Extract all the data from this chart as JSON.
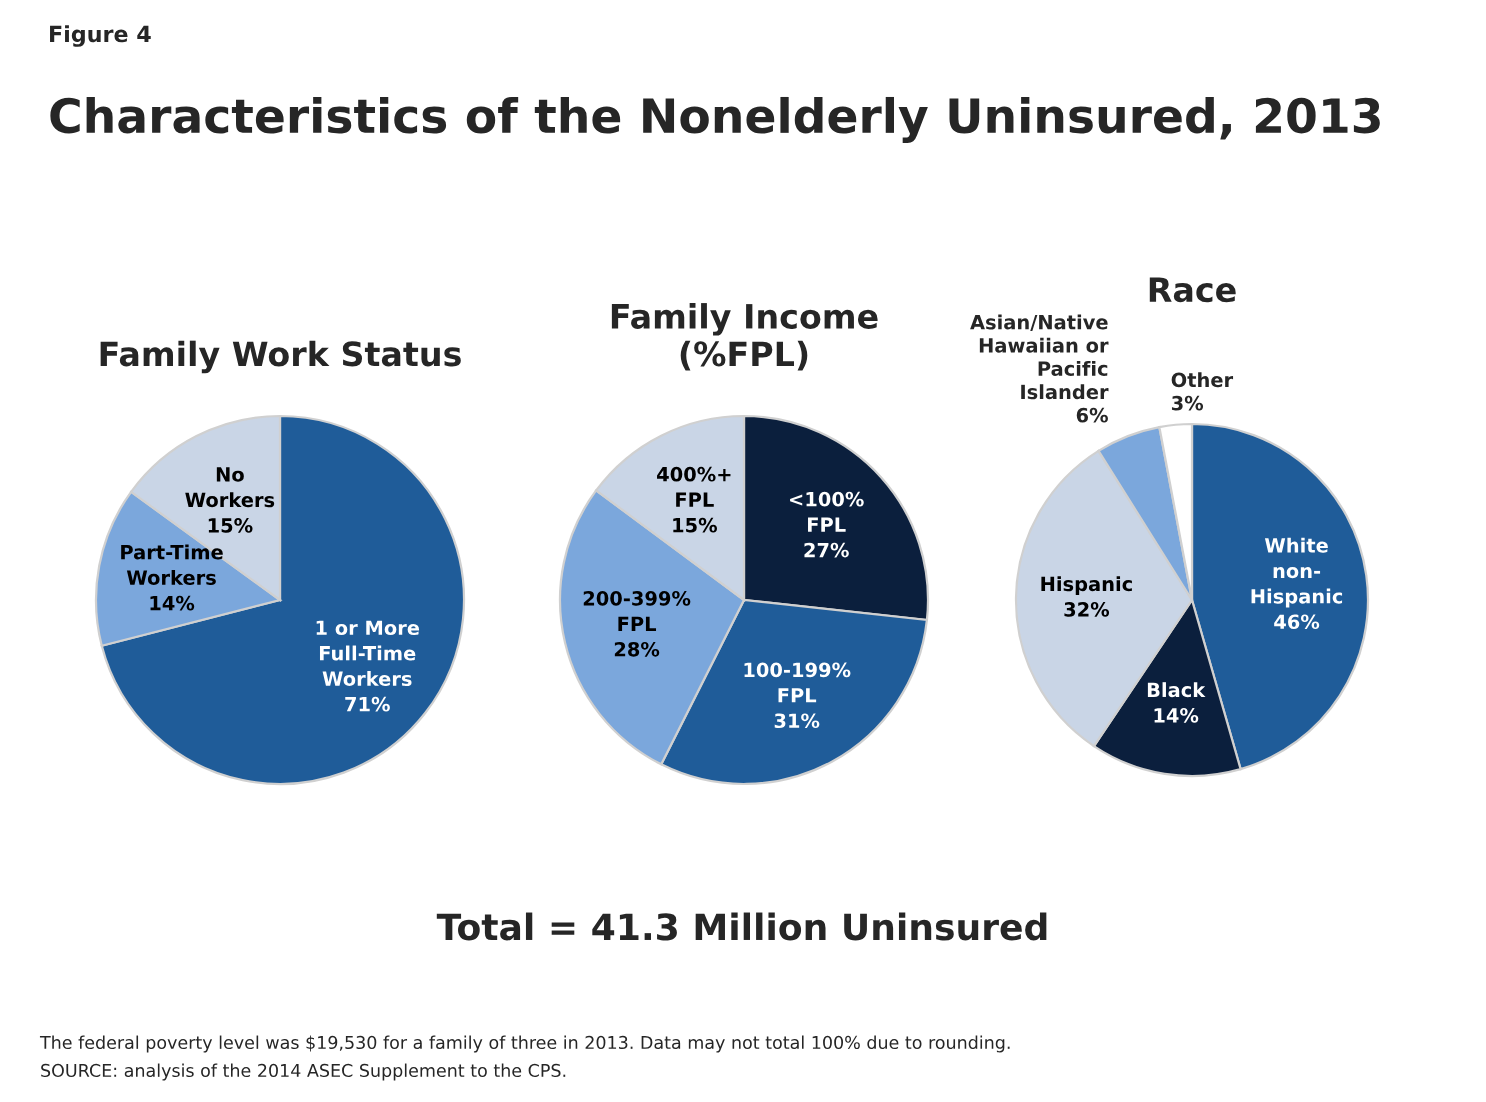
{
  "chart_data": [
    {
      "type": "other",
      "subtitle": "Figure 4",
      "title": "Characteristics of the Nonelderly Uninsured, 2013",
      "annotations": [
        "Total = 41.3 Million Uninsured",
        "The federal poverty level was $19,530 for a family of three in 2013. Data may not total 100% due to rounding.",
        "SOURCE: analysis of the 2014 ASEC Supplement to the CPS."
      ]
    },
    {
      "type": "pie",
      "title": "Family Work Status",
      "categories": [
        "1 or More\nFull-Time\nWorkers",
        "Part-Time\nWorkers",
        "No\nWorkers"
      ],
      "values": [
        71,
        14,
        15
      ],
      "value_labels": [
        "71%",
        "14%",
        "15%"
      ],
      "colors": [
        "#1f5c99",
        "#7ba7dc",
        "#c9d5e6"
      ]
    },
    {
      "type": "pie",
      "title": "Family Income\n(%FPL)",
      "categories": [
        "<100%\nFPL",
        "100-199%\nFPL",
        "200-399%\nFPL",
        "400%+\nFPL"
      ],
      "values": [
        27,
        31,
        28,
        15
      ],
      "value_labels": [
        "27%",
        "31%",
        "28%",
        "15%"
      ],
      "colors": [
        "#0b1f3d",
        "#1f5c99",
        "#7ba7dc",
        "#c9d5e6"
      ]
    },
    {
      "type": "pie",
      "title": "Race",
      "categories": [
        "White\nnon-\nHispanic",
        "Black",
        "Hispanic",
        "Asian/Native\nHawaiian or\nPacific\nIslander",
        "Other"
      ],
      "values": [
        46,
        14,
        32,
        6,
        3
      ],
      "value_labels": [
        "46%",
        "14%",
        "32%",
        "6%",
        "3%"
      ],
      "colors": [
        "#1f5c99",
        "#0b1f3d",
        "#c9d5e6",
        "#7ba7dc",
        "#ffffff"
      ]
    }
  ]
}
